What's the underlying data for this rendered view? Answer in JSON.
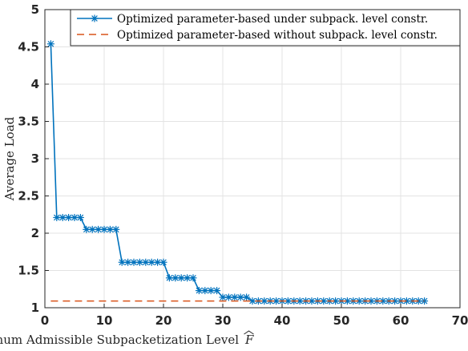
{
  "chart_data": {
    "type": "line",
    "xlabel": "Maximum Admissible Subpacketization Level",
    "xlabel_symbol": "F",
    "ylabel": "Average Load",
    "xlim": [
      0,
      70
    ],
    "ylim": [
      1,
      5
    ],
    "xticks": [
      0,
      10,
      20,
      30,
      40,
      50,
      60,
      70
    ],
    "yticks": [
      1,
      1.5,
      2,
      2.5,
      3,
      3.5,
      4,
      4.5,
      5
    ],
    "ytick_labels": [
      "1",
      "1.5",
      "2",
      "2.5",
      "3",
      "3.5",
      "4",
      "4.5",
      "5"
    ],
    "grid": true,
    "legend_position": "top-right",
    "series": [
      {
        "name": "Optimized parameter-based under subpack. level constr.",
        "color": "#0072BD",
        "line_style": "solid",
        "marker": "asterisk",
        "x": [
          1,
          2,
          3,
          4,
          5,
          6,
          7,
          8,
          9,
          10,
          11,
          12,
          13,
          14,
          15,
          16,
          17,
          18,
          19,
          20,
          21,
          22,
          23,
          24,
          25,
          26,
          27,
          28,
          29,
          30,
          31,
          32,
          33,
          34,
          35,
          36,
          37,
          38,
          39,
          40,
          41,
          42,
          43,
          44,
          45,
          46,
          47,
          48,
          49,
          50,
          51,
          52,
          53,
          54,
          55,
          56,
          57,
          58,
          59,
          60,
          61,
          62,
          63,
          64
        ],
        "values": [
          4.54,
          2.21,
          2.21,
          2.21,
          2.21,
          2.21,
          2.05,
          2.05,
          2.05,
          2.05,
          2.05,
          2.05,
          1.61,
          1.61,
          1.61,
          1.61,
          1.61,
          1.61,
          1.61,
          1.61,
          1.4,
          1.4,
          1.4,
          1.4,
          1.4,
          1.23,
          1.23,
          1.23,
          1.23,
          1.14,
          1.14,
          1.14,
          1.14,
          1.14,
          1.09,
          1.09,
          1.09,
          1.09,
          1.09,
          1.09,
          1.09,
          1.09,
          1.09,
          1.09,
          1.09,
          1.09,
          1.09,
          1.09,
          1.09,
          1.09,
          1.09,
          1.09,
          1.09,
          1.09,
          1.09,
          1.09,
          1.09,
          1.09,
          1.09,
          1.09,
          1.09,
          1.09,
          1.09,
          1.09
        ]
      },
      {
        "name": "Optimized parameter-based without subpack. level constr.",
        "color": "#D95319",
        "line_style": "dashed",
        "marker": "none",
        "x": [
          1,
          64
        ],
        "values": [
          1.09,
          1.09
        ]
      }
    ]
  }
}
